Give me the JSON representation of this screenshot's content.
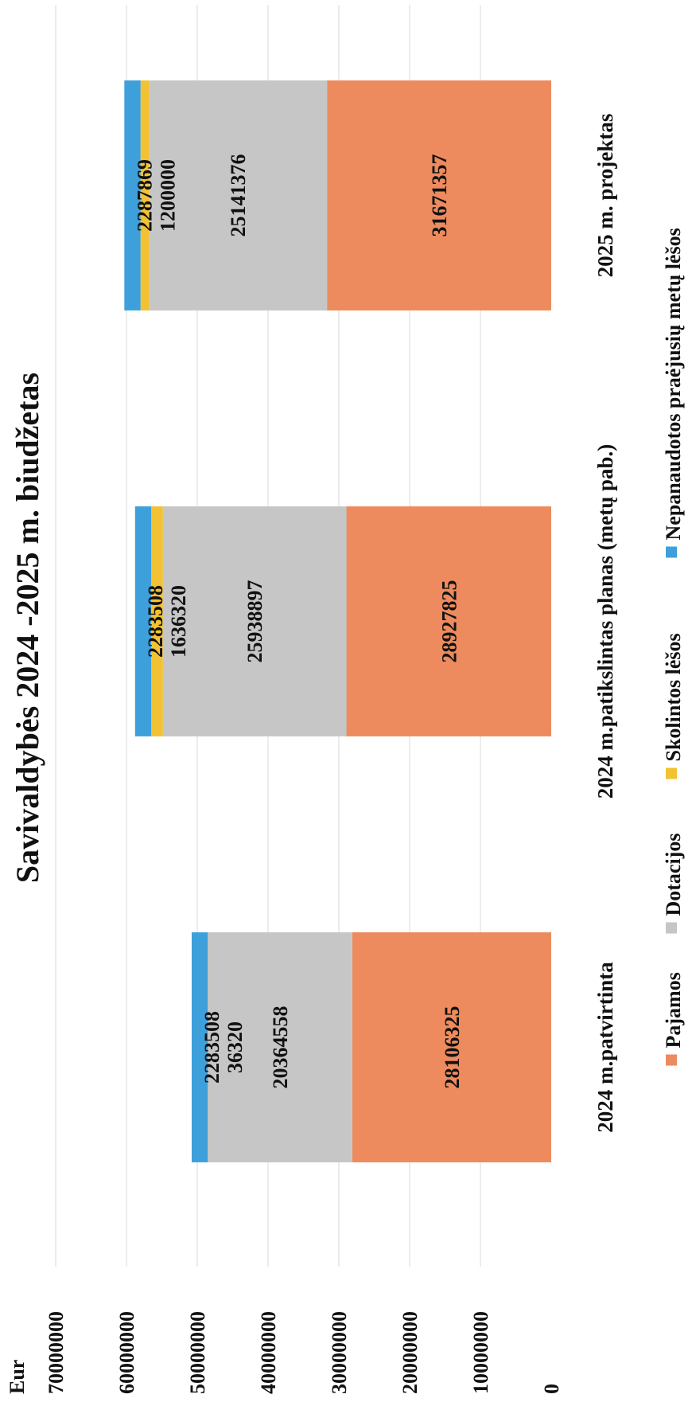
{
  "chart_data": {
    "type": "bar",
    "stacked": true,
    "title": "Savivaldybės 2024 -2025 m. biudžetas",
    "ylabel": "Eur",
    "ylim": [
      0,
      70000000
    ],
    "yticks": [
      "0",
      "10000000",
      "20000000",
      "30000000",
      "40000000",
      "50000000",
      "60000000",
      "70000000"
    ],
    "grid": true,
    "legend_position": "bottom",
    "categories": [
      "2024 m.patvirtinta",
      "2024 m.patikslintas planas (metų pab.)",
      "2025 m. projektas"
    ],
    "series": [
      {
        "name": "Pajamos",
        "color": "#ED8B5E",
        "values": [
          28106325,
          28927825,
          31671357
        ]
      },
      {
        "name": "Dotacijos",
        "color": "#C6C6C6",
        "values": [
          20364558,
          25938897,
          25141376
        ]
      },
      {
        "name": "Skolintos lėšos",
        "color": "#F2C232",
        "values": [
          36320,
          1636320,
          1200000
        ]
      },
      {
        "name": "Nepanaudotos praėjusių metų lėšos",
        "color": "#3EA0DB",
        "values": [
          2283508,
          2283508,
          2287869
        ]
      }
    ],
    "data_labels": [
      [
        "28106325",
        "28927825",
        "31671357"
      ],
      [
        "20364558",
        "25938897",
        "25141376"
      ],
      [
        "36320",
        "1636320",
        "1200000"
      ],
      [
        "2283508",
        "2283508",
        "2287869"
      ]
    ]
  }
}
